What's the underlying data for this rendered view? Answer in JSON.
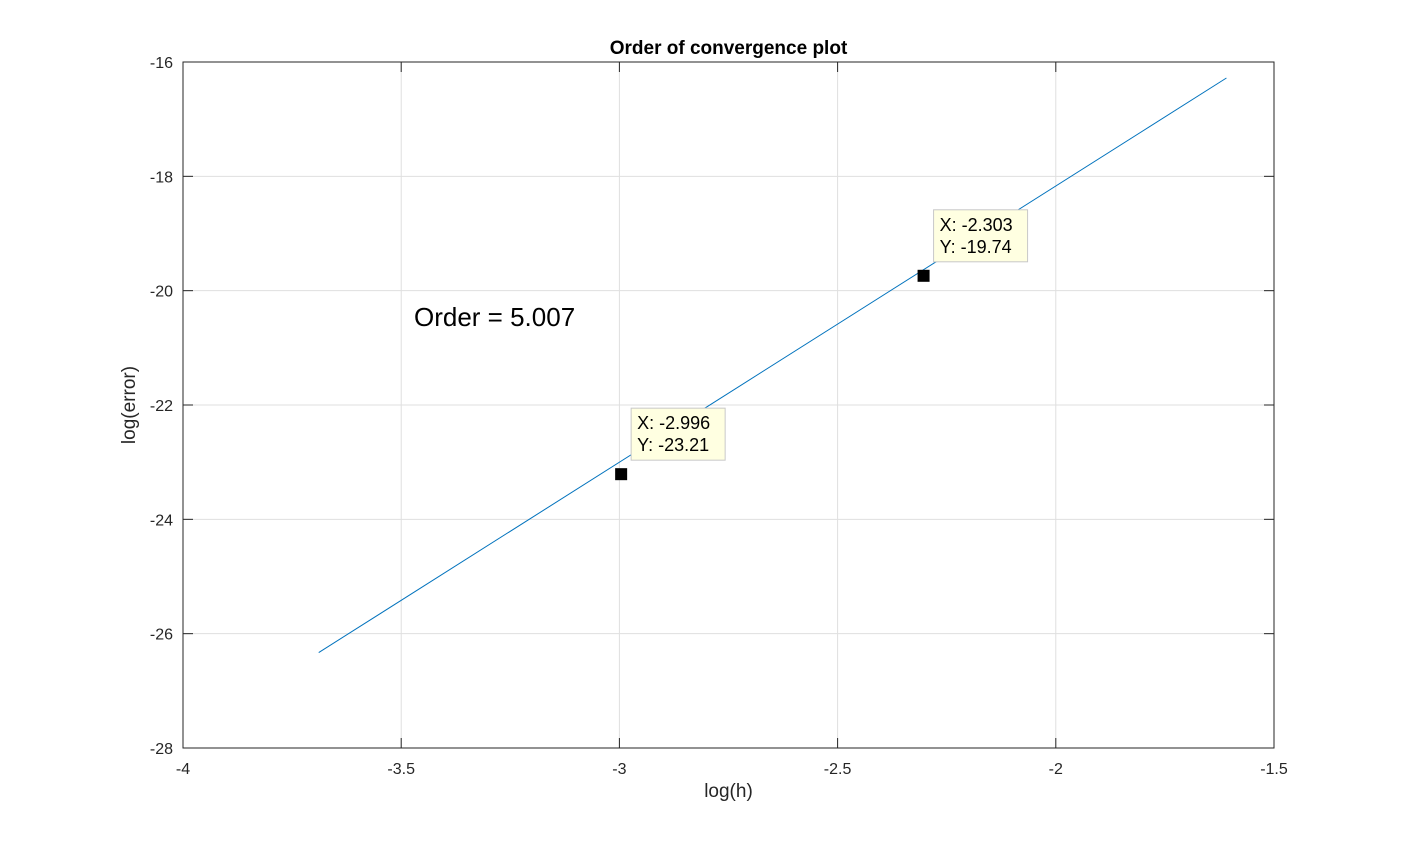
{
  "chart_data": {
    "type": "line",
    "title": "Order of convergence plot",
    "xlabel": "log(h)",
    "ylabel": "log(error)",
    "xlim": [
      -4,
      -1.5
    ],
    "ylim": [
      -28,
      -16
    ],
    "xticks": [
      -4,
      -3.5,
      -3,
      -2.5,
      -2,
      -1.5
    ],
    "xtick_labels": [
      "-4",
      "-3.5",
      "-3",
      "-2.5",
      "-2",
      "-1.5"
    ],
    "yticks": [
      -28,
      -26,
      -24,
      -22,
      -20,
      -18,
      -16
    ],
    "ytick_labels": [
      "-28",
      "-26",
      "-24",
      "-22",
      "-20",
      "-18",
      "-16"
    ],
    "grid": true,
    "series": [
      {
        "color": "#0072BD",
        "x": [
          -3.689,
          -1.609
        ],
        "y": [
          -26.33,
          -16.28
        ]
      }
    ],
    "annotation": "Order = 5.007",
    "datatips": [
      {
        "x": -2.996,
        "y": -23.21,
        "x_text": "X: -2.996",
        "y_text": "Y: -23.21"
      },
      {
        "x": -2.303,
        "y": -19.74,
        "x_text": "X: -2.303",
        "y_text": "Y: -19.74"
      }
    ]
  }
}
